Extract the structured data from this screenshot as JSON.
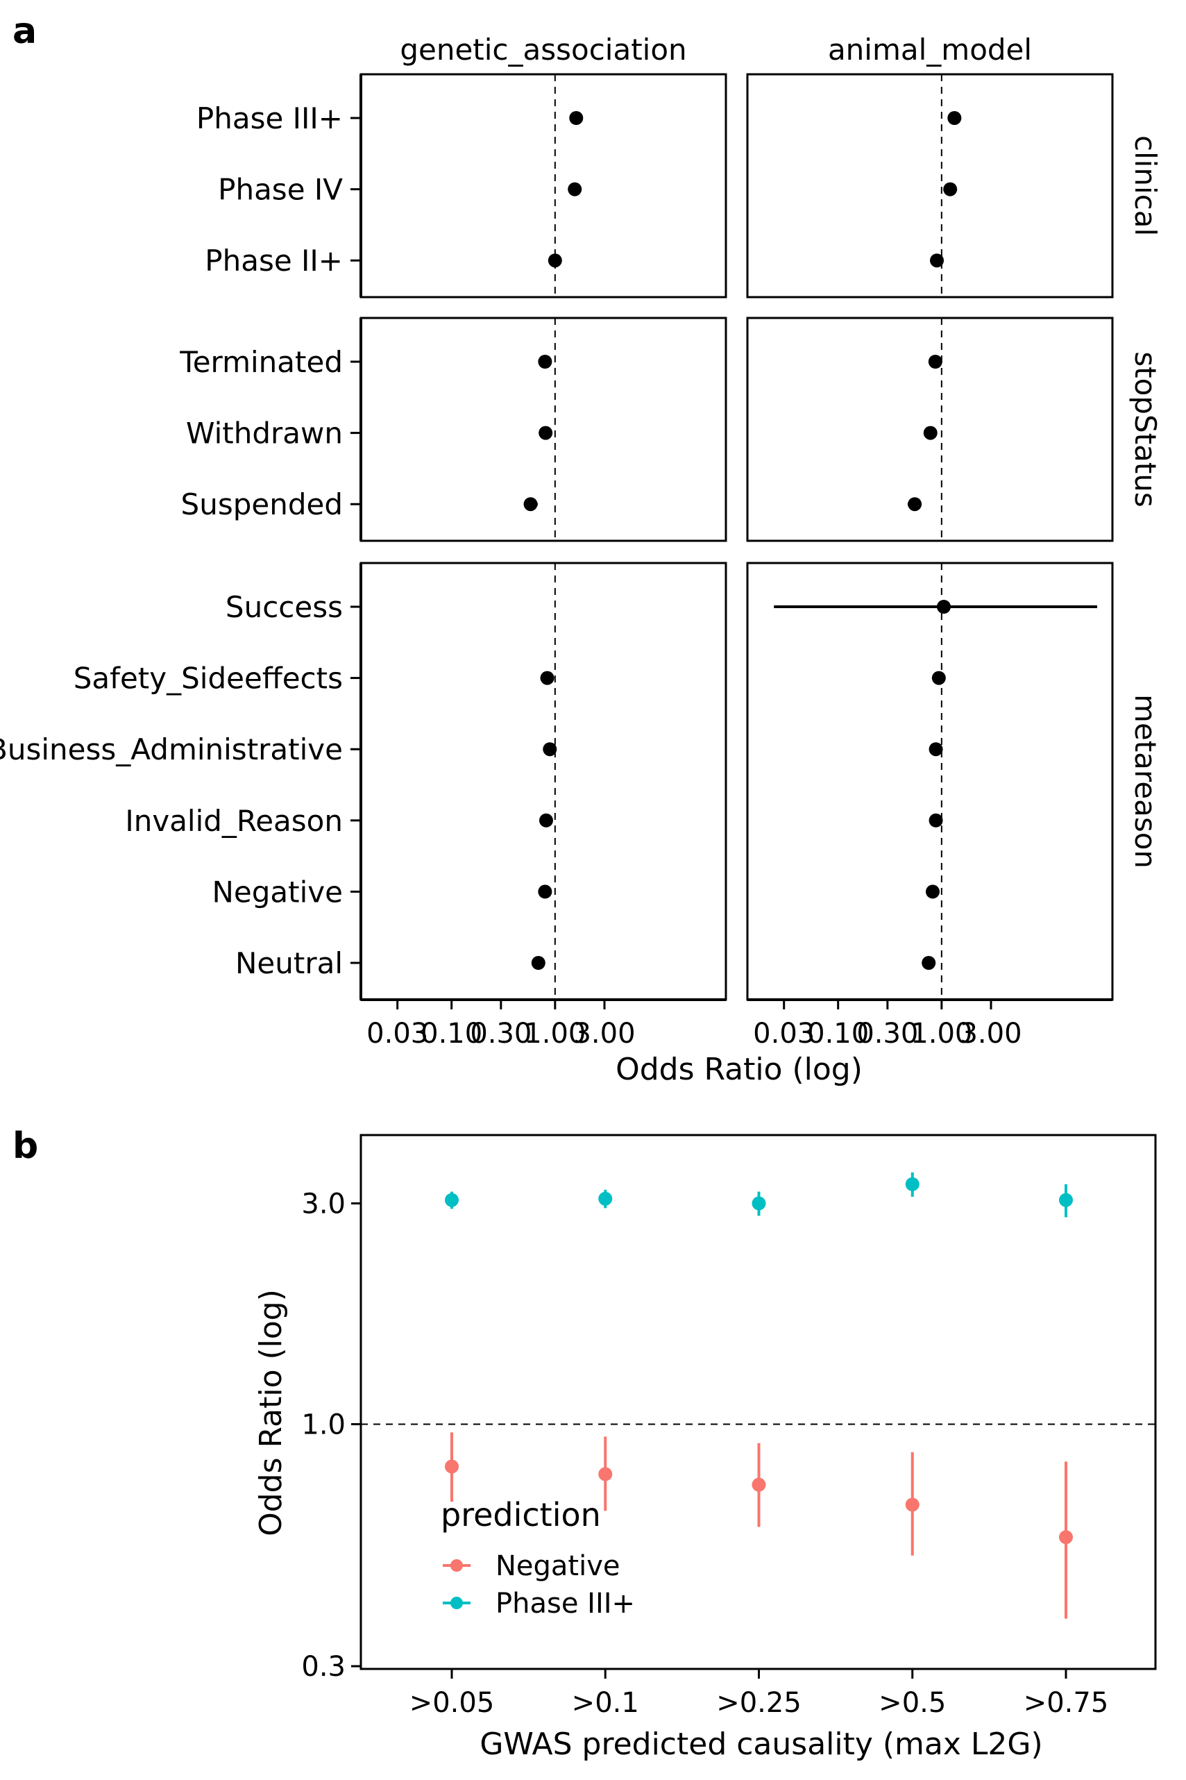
{
  "panel_labels": [
    "a",
    "b"
  ],
  "chart_data": [
    {
      "type": "scatter",
      "subtype": "forest-plot-faceted",
      "x_scale": "log",
      "xlabel": "Odds Ratio (log)",
      "x_ticks": [
        0.03,
        0.1,
        0.3,
        1.0,
        3.0
      ],
      "x_tick_labels": [
        "0.03",
        "0.10",
        "0.30",
        "1.00",
        "3.00"
      ],
      "reference_line": 1.0,
      "columns": [
        "genetic_association",
        "animal_model"
      ],
      "rows": [
        {
          "name": "clinical",
          "categories": [
            "Phase III+",
            "Phase IV",
            "Phase II+"
          ]
        },
        {
          "name": "stopStatus",
          "categories": [
            "Terminated",
            "Withdrawn",
            "Suspended"
          ]
        },
        {
          "name": "metareason",
          "categories": [
            "Success",
            "Safety_Sideeffects",
            "Business_Administrative",
            "Invalid_Reason",
            "Negative",
            "Neutral"
          ]
        }
      ],
      "series": [
        {
          "column": "genetic_association",
          "points": {
            "Phase III+": {
              "or": 1.6,
              "lo": 1.55,
              "hi": 1.66
            },
            "Phase IV": {
              "or": 1.55,
              "lo": 1.5,
              "hi": 1.6
            },
            "Phase II+": {
              "or": 1.0,
              "lo": 0.97,
              "hi": 1.03
            },
            "Terminated": {
              "or": 0.8,
              "lo": 0.76,
              "hi": 0.84
            },
            "Withdrawn": {
              "or": 0.81,
              "lo": 0.76,
              "hi": 0.86
            },
            "Suspended": {
              "or": 0.58,
              "lo": 0.5,
              "hi": 0.68
            },
            "Success": null,
            "Safety_Sideeffects": {
              "or": 0.84,
              "lo": 0.73,
              "hi": 0.96
            },
            "Business_Administrative": {
              "or": 0.89,
              "lo": 0.83,
              "hi": 0.95
            },
            "Invalid_Reason": {
              "or": 0.82,
              "lo": 0.72,
              "hi": 0.93
            },
            "Negative": {
              "or": 0.8,
              "lo": 0.75,
              "hi": 0.86
            },
            "Neutral": {
              "or": 0.69,
              "lo": 0.64,
              "hi": 0.74
            }
          }
        },
        {
          "column": "animal_model",
          "points": {
            "Phase III+": {
              "or": 1.33,
              "lo": 1.29,
              "hi": 1.37
            },
            "Phase IV": {
              "or": 1.21,
              "lo": 1.16,
              "hi": 1.26
            },
            "Phase II+": {
              "or": 0.9,
              "lo": 0.87,
              "hi": 0.93
            },
            "Terminated": {
              "or": 0.87,
              "lo": 0.83,
              "hi": 0.91
            },
            "Withdrawn": {
              "or": 0.78,
              "lo": 0.73,
              "hi": 0.83
            },
            "Suspended": {
              "or": 0.55,
              "lo": 0.47,
              "hi": 0.64
            },
            "Success": {
              "or": 1.05,
              "lo": 0.024,
              "hi": 40
            },
            "Safety_Sideeffects": {
              "or": 0.94,
              "lo": 0.81,
              "hi": 1.09
            },
            "Business_Administrative": {
              "or": 0.88,
              "lo": 0.82,
              "hi": 0.94
            },
            "Invalid_Reason": {
              "or": 0.88,
              "lo": 0.78,
              "hi": 0.99
            },
            "Negative": {
              "or": 0.82,
              "lo": 0.77,
              "hi": 0.87
            },
            "Neutral": {
              "or": 0.75,
              "lo": 0.7,
              "hi": 0.8
            }
          }
        }
      ]
    },
    {
      "type": "scatter",
      "subtype": "point-range",
      "y_scale": "log",
      "xlabel": "GWAS predicted causality (max L2G)",
      "ylabel": "Odds Ratio (log)",
      "categories": [
        ">0.05",
        ">0.1",
        ">0.25",
        ">0.5",
        ">0.75"
      ],
      "y_ticks": [
        0.3,
        1.0,
        3.0
      ],
      "y_tick_labels": [
        "0.3",
        "1.0",
        "3.0"
      ],
      "reference_line": 1.0,
      "legend": {
        "title": "prediction",
        "position": "inside-bottom-left"
      },
      "series": [
        {
          "name": "Negative",
          "color": "#F8766D",
          "values": [
            0.81,
            0.78,
            0.74,
            0.67,
            0.57
          ],
          "lo": [
            0.68,
            0.65,
            0.6,
            0.52,
            0.38
          ],
          "hi": [
            0.96,
            0.94,
            0.91,
            0.87,
            0.83
          ]
        },
        {
          "name": "Phase III+",
          "color": "#00BFC4",
          "values": [
            3.05,
            3.07,
            3.0,
            3.3,
            3.05
          ],
          "lo": [
            2.92,
            2.93,
            2.82,
            3.1,
            2.8
          ],
          "hi": [
            3.18,
            3.21,
            3.18,
            3.5,
            3.3
          ]
        }
      ]
    }
  ]
}
